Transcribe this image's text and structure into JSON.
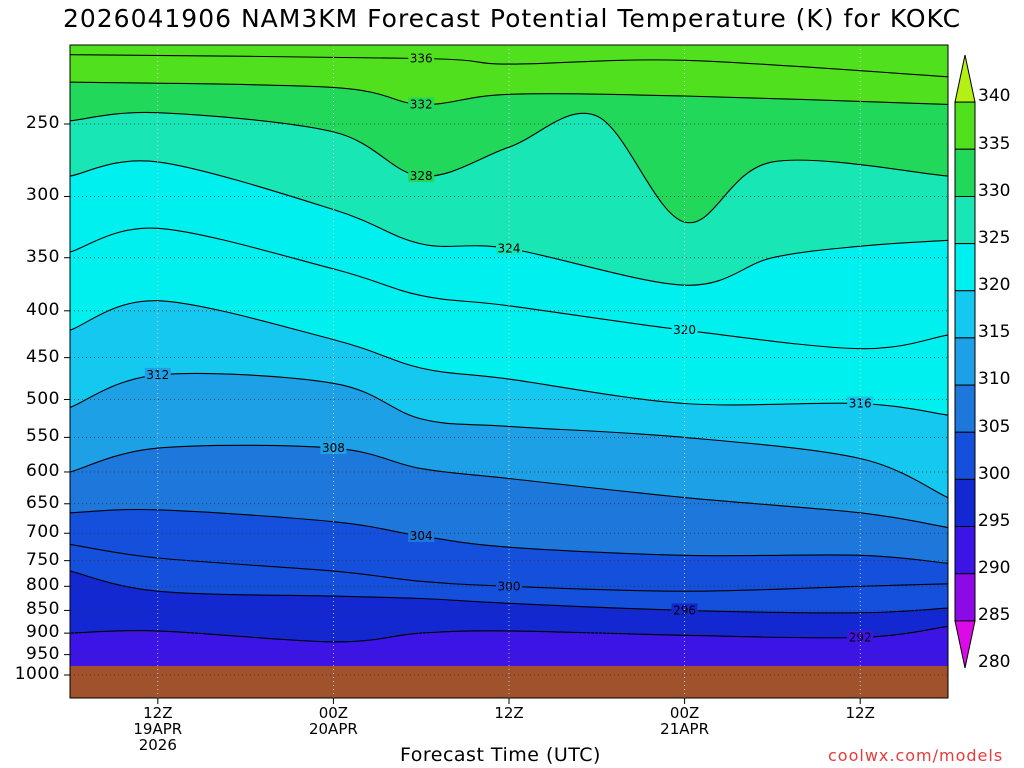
{
  "title": "2026041906 NAM3KM Forecast Potential Temperature (K) for KOKC",
  "x_axis_label": "Forecast Time (UTC)",
  "credit": "coolwx.com/models",
  "y_ticks": [
    "250",
    "300",
    "350",
    "400",
    "450",
    "500",
    "550",
    "600",
    "650",
    "700",
    "750",
    "800",
    "850",
    "900",
    "950",
    "1000"
  ],
  "x_ticks": [
    {
      "line1": "12Z",
      "line2": "19APR",
      "line3": "2026"
    },
    {
      "line1": "00Z",
      "line2": "20APR",
      "line3": ""
    },
    {
      "line1": "12Z",
      "line2": "",
      "line3": ""
    },
    {
      "line1": "00Z",
      "line2": "21APR",
      "line3": ""
    },
    {
      "line1": "12Z",
      "line2": "",
      "line3": ""
    }
  ],
  "colorbar_labels": [
    "340",
    "335",
    "330",
    "325",
    "320",
    "315",
    "310",
    "305",
    "300",
    "295",
    "290",
    "285",
    "280"
  ],
  "colorbar_colors": [
    "#b4f014",
    "#50e01e",
    "#22d85a",
    "#18e6b4",
    "#00f0f0",
    "#14c8f0",
    "#1ea0e6",
    "#1e78dc",
    "#1450dc",
    "#1428d2",
    "#3c14e6",
    "#8c0ae6",
    "#dc0ae6"
  ],
  "ground_color": "#a0522d",
  "chart_data": {
    "type": "heatmap",
    "title": "2026041906 NAM3KM Forecast Potential Temperature (K) for KOKC",
    "xlabel": "Forecast Time (UTC)",
    "ylabel": "",
    "y_scale": "log-pressure",
    "y_range_hPa": [
      1000,
      200
    ],
    "x_range": [
      "2026-04-19 06Z",
      "2026-04-21 18Z"
    ],
    "colorbar_range": [
      280,
      340
    ],
    "contour_interval": 4,
    "series": [
      {
        "name": "336",
        "points": [
          [
            "2026-04-19 06Z",
            210
          ],
          [
            "2026-04-20 06Z",
            212
          ],
          [
            "2026-04-20 12Z",
            215
          ],
          [
            "2026-04-21 00Z",
            213
          ],
          [
            "2026-04-21 18Z",
            222
          ]
        ]
      },
      {
        "name": "332",
        "points": [
          [
            "2026-04-19 06Z",
            225
          ],
          [
            "2026-04-20 00Z",
            228
          ],
          [
            "2026-04-20 06Z",
            238
          ],
          [
            "2026-04-20 12Z",
            232
          ],
          [
            "2026-04-21 00Z",
            233
          ],
          [
            "2026-04-21 18Z",
            238
          ]
        ]
      },
      {
        "name": "328",
        "points": [
          [
            "2026-04-19 06Z",
            248
          ],
          [
            "2026-04-19 12Z",
            243
          ],
          [
            "2026-04-20 00Z",
            255
          ],
          [
            "2026-04-20 06Z",
            285
          ],
          [
            "2026-04-20 12Z",
            265
          ],
          [
            "2026-04-20 18Z",
            245
          ],
          [
            "2026-04-21 00Z",
            320
          ],
          [
            "2026-04-21 06Z",
            275
          ],
          [
            "2026-04-21 18Z",
            285
          ]
        ]
      },
      {
        "name": "324",
        "points": [
          [
            "2026-04-19 06Z",
            285
          ],
          [
            "2026-04-19 12Z",
            275
          ],
          [
            "2026-04-20 00Z",
            310
          ],
          [
            "2026-04-20 06Z",
            338
          ],
          [
            "2026-04-20 12Z",
            342
          ],
          [
            "2026-04-21 00Z",
            375
          ],
          [
            "2026-04-21 06Z",
            350
          ],
          [
            "2026-04-21 12Z",
            340
          ],
          [
            "2026-04-21 18Z",
            335
          ]
        ]
      },
      {
        "name": "320",
        "points": [
          [
            "2026-04-19 06Z",
            345
          ],
          [
            "2026-04-19 12Z",
            325
          ],
          [
            "2026-04-20 00Z",
            360
          ],
          [
            "2026-04-20 06Z",
            385
          ],
          [
            "2026-04-20 12Z",
            395
          ],
          [
            "2026-04-21 00Z",
            420
          ],
          [
            "2026-04-21 12Z",
            440
          ],
          [
            "2026-04-21 18Z",
            425
          ]
        ]
      },
      {
        "name": "316",
        "points": [
          [
            "2026-04-19 06Z",
            420
          ],
          [
            "2026-04-19 12Z",
            390
          ],
          [
            "2026-04-20 00Z",
            430
          ],
          [
            "2026-04-20 06Z",
            462
          ],
          [
            "2026-04-20 12Z",
            475
          ],
          [
            "2026-04-21 00Z",
            505
          ],
          [
            "2026-04-21 12Z",
            505
          ],
          [
            "2026-04-21 18Z",
            520
          ]
        ]
      },
      {
        "name": "312",
        "points": [
          [
            "2026-04-19 06Z",
            510
          ],
          [
            "2026-04-19 12Z",
            470
          ],
          [
            "2026-04-20 00Z",
            480
          ],
          [
            "2026-04-20 06Z",
            525
          ],
          [
            "2026-04-20 12Z",
            535
          ],
          [
            "2026-04-21 00Z",
            550
          ],
          [
            "2026-04-21 12Z",
            580
          ],
          [
            "2026-04-21 18Z",
            640
          ]
        ]
      },
      {
        "name": "308",
        "points": [
          [
            "2026-04-19 06Z",
            600
          ],
          [
            "2026-04-19 12Z",
            565
          ],
          [
            "2026-04-20 00Z",
            565
          ],
          [
            "2026-04-20 06Z",
            595
          ],
          [
            "2026-04-20 12Z",
            610
          ],
          [
            "2026-04-21 00Z",
            640
          ],
          [
            "2026-04-21 12Z",
            665
          ],
          [
            "2026-04-21 18Z",
            690
          ]
        ]
      },
      {
        "name": "304",
        "points": [
          [
            "2026-04-19 06Z",
            665
          ],
          [
            "2026-04-19 12Z",
            660
          ],
          [
            "2026-04-20 00Z",
            680
          ],
          [
            "2026-04-20 06Z",
            705
          ],
          [
            "2026-04-20 12Z",
            725
          ],
          [
            "2026-04-21 00Z",
            740
          ],
          [
            "2026-04-21 12Z",
            740
          ],
          [
            "2026-04-21 18Z",
            755
          ]
        ]
      },
      {
        "name": "300",
        "points": [
          [
            "2026-04-19 06Z",
            720
          ],
          [
            "2026-04-19 12Z",
            745
          ],
          [
            "2026-04-20 00Z",
            770
          ],
          [
            "2026-04-20 06Z",
            790
          ],
          [
            "2026-04-20 12Z",
            800
          ],
          [
            "2026-04-21 00Z",
            810
          ],
          [
            "2026-04-21 12Z",
            800
          ],
          [
            "2026-04-21 18Z",
            795
          ]
        ]
      },
      {
        "name": "296",
        "points": [
          [
            "2026-04-19 06Z",
            770
          ],
          [
            "2026-04-19 12Z",
            810
          ],
          [
            "2026-04-20 00Z",
            820
          ],
          [
            "2026-04-20 06Z",
            825
          ],
          [
            "2026-04-20 12Z",
            835
          ],
          [
            "2026-04-21 00Z",
            850
          ],
          [
            "2026-04-21 12Z",
            855
          ],
          [
            "2026-04-21 18Z",
            845
          ]
        ]
      },
      {
        "name": "292",
        "points": [
          [
            "2026-04-19 06Z",
            900
          ],
          [
            "2026-04-19 12Z",
            895
          ],
          [
            "2026-04-20 00Z",
            920
          ],
          [
            "2026-04-20 06Z",
            900
          ],
          [
            "2026-04-20 12Z",
            895
          ],
          [
            "2026-04-21 00Z",
            905
          ],
          [
            "2026-04-21 12Z",
            910
          ],
          [
            "2026-04-21 18Z",
            885
          ]
        ]
      }
    ]
  }
}
